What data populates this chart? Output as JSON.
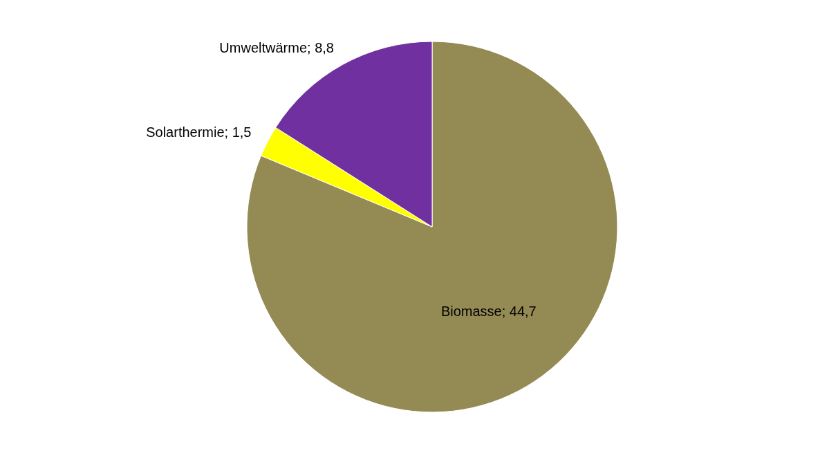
{
  "chart_data": {
    "type": "pie",
    "categories": [
      "Biomasse",
      "Solarthermie",
      "Umweltwärme"
    ],
    "values": [
      44.7,
      1.5,
      8.8
    ],
    "value_labels": [
      "44,7",
      "1,5",
      "8,8"
    ],
    "colors": [
      "#948a54",
      "#ffff00",
      "#7030a0"
    ]
  }
}
